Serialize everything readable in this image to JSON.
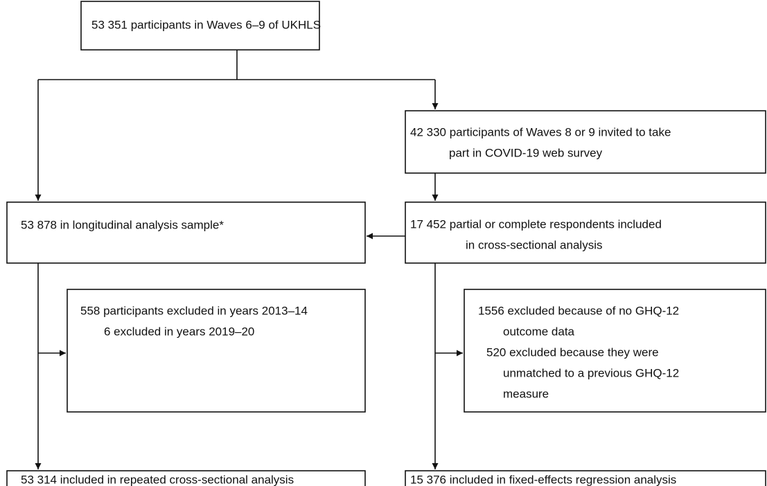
{
  "nodes": [
    {
      "lines": [
        "53 351 participants in Waves 6–9 of UKHLS"
      ]
    },
    {
      "lines": [
        "42 330 participants of Waves 8 or 9 invited to take",
        "part in COVID-19 web survey"
      ]
    },
    {
      "lines": [
        "53 878 in longitudinal analysis sample*"
      ]
    },
    {
      "lines": [
        "17 452 partial or complete respondents included",
        "in cross-sectional analysis"
      ]
    },
    {
      "lines": [
        "558 participants excluded in years 2013–14",
        "6 excluded in years 2019–20"
      ]
    },
    {
      "lines": [
        "1556 excluded because of no GHQ-12",
        "outcome data",
        "520 excluded because they were",
        "unmatched to a previous GHQ-12",
        "measure"
      ]
    },
    {
      "lines": [
        "53 314 included in repeated cross-sectional analysis"
      ]
    },
    {
      "lines": [
        "15 376 included in fixed-effects regression analysis"
      ]
    }
  ]
}
